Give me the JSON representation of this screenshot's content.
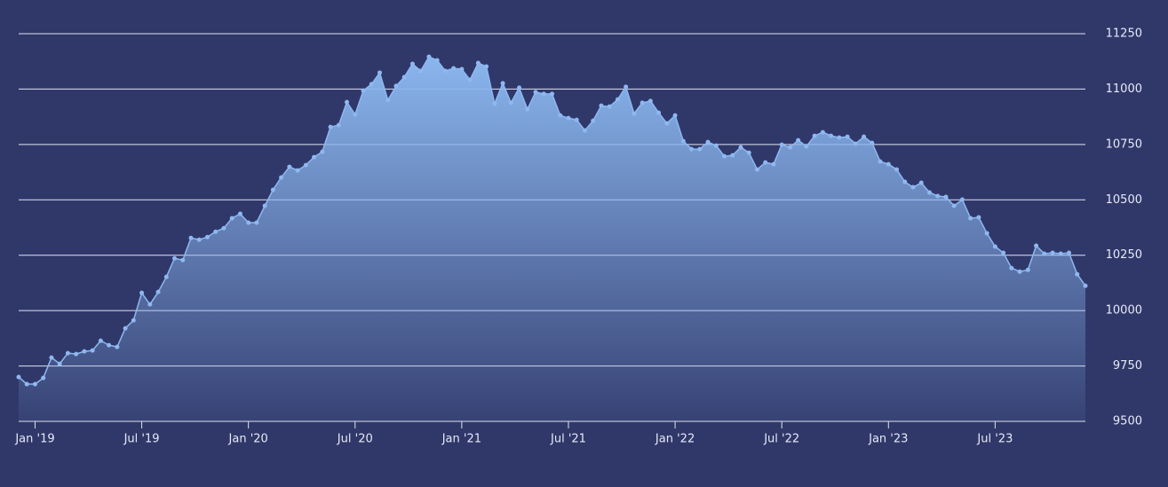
{
  "chart_data": {
    "type": "area",
    "categories": [
      null,
      null,
      "Jan '19",
      null,
      null,
      null,
      null,
      null,
      null,
      null,
      null,
      null,
      null,
      null,
      null,
      "Jul '19",
      null,
      null,
      null,
      null,
      null,
      null,
      null,
      null,
      null,
      null,
      null,
      null,
      "Jan '20",
      null,
      null,
      null,
      null,
      null,
      null,
      null,
      null,
      null,
      null,
      null,
      null,
      "Jul '20",
      null,
      null,
      null,
      null,
      null,
      null,
      null,
      null,
      null,
      null,
      null,
      null,
      "Jan '21",
      null,
      null,
      null,
      null,
      null,
      null,
      null,
      null,
      null,
      null,
      null,
      null,
      "Jul '21",
      null,
      null,
      null,
      null,
      null,
      null,
      null,
      null,
      null,
      null,
      null,
      null,
      "Jan '22",
      null,
      null,
      null,
      null,
      null,
      null,
      null,
      null,
      null,
      null,
      null,
      null,
      "Jul '22",
      null,
      null,
      null,
      null,
      null,
      null,
      null,
      null,
      null,
      null,
      null,
      null,
      "Jan '23",
      null,
      null,
      null,
      null,
      null,
      null,
      null,
      null,
      null,
      null,
      null,
      null,
      "Jul '23",
      null,
      null,
      null,
      null,
      null,
      null,
      null,
      null,
      null,
      null,
      null
    ],
    "values": [
      9700,
      9668,
      9668,
      9696,
      9788,
      9760,
      9808,
      9804,
      9816,
      9820,
      9864,
      9844,
      9836,
      9920,
      9956,
      10080,
      10028,
      10084,
      10152,
      10236,
      10228,
      10328,
      10320,
      10332,
      10356,
      10372,
      10417,
      10437,
      10397,
      10397,
      10473,
      10545,
      10601,
      10649,
      10633,
      10657,
      10693,
      10717,
      10829,
      10837,
      10941,
      10885,
      10993,
      11022,
      11074,
      10950,
      11014,
      11054,
      11114,
      11082,
      11146,
      11130,
      11082,
      11094,
      11090,
      11042,
      11118,
      11102,
      10934,
      11026,
      10938,
      11006,
      10909,
      10986,
      10978,
      10978,
      10881,
      10869,
      10861,
      10813,
      10857,
      10925,
      10921,
      10953,
      11010,
      10889,
      10938,
      10946,
      10893,
      10845,
      10881,
      10765,
      10729,
      10729,
      10761,
      10745,
      10697,
      10701,
      10737,
      10713,
      10637,
      10669,
      10661,
      10749,
      10737,
      10769,
      10741,
      10789,
      10805,
      10789,
      10781,
      10785,
      10753,
      10785,
      10757,
      10673,
      10661,
      10637,
      10581,
      10557,
      10577,
      10533,
      10517,
      10513,
      10473,
      10501,
      10417,
      10421,
      10349,
      10289,
      10261,
      10192,
      10176,
      10184,
      10293,
      10257,
      10261,
      10257,
      10261,
      10164,
      10112
    ],
    "color": "#8fb8f0",
    "ylim": [
      9500,
      11250
    ],
    "yticks": [
      9500,
      9750,
      10000,
      10250,
      10500,
      10750,
      11000,
      11250
    ],
    "grid": true
  }
}
